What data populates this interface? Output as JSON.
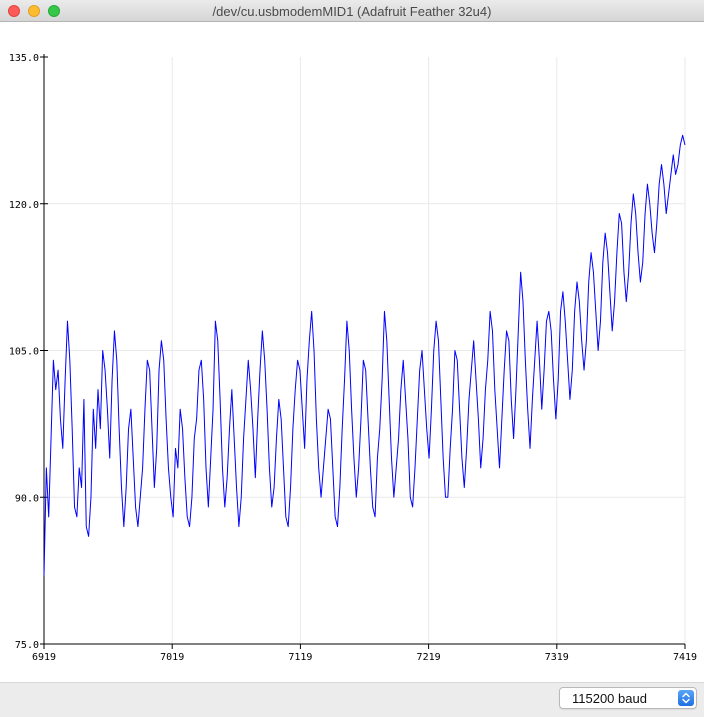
{
  "window": {
    "title": "/dev/cu.usbmodemMID1 (Adafruit Feather 32u4)"
  },
  "baud_select": {
    "value": "115200 baud"
  },
  "chart_data": {
    "type": "line",
    "title": "",
    "xlabel": "",
    "ylabel": "",
    "xlim": [
      6919,
      7419
    ],
    "ylim": [
      75.0,
      135.0
    ],
    "x_ticks": [
      "6919",
      "7019",
      "7119",
      "7219",
      "7319",
      "7419"
    ],
    "y_ticks": [
      "135.0",
      "120.0",
      "105.0",
      "90.0",
      "75.0"
    ],
    "grid": true,
    "series_color": "#0000ff",
    "series": [
      {
        "values": [
          82,
          93,
          88,
          96,
          104,
          101,
          103,
          98,
          95,
          102,
          108,
          104,
          97,
          89,
          88,
          93,
          91,
          100,
          87,
          86,
          90,
          99,
          95,
          101,
          97,
          105,
          103,
          99,
          94,
          102,
          107,
          104,
          97,
          91,
          87,
          91,
          97,
          99,
          94,
          89,
          87,
          90,
          93,
          99,
          104,
          103,
          97,
          91,
          95,
          103,
          106,
          104,
          98,
          93,
          90,
          88,
          95,
          93,
          99,
          97,
          92,
          88,
          87,
          90,
          96,
          98,
          103,
          104,
          100,
          93,
          89,
          94,
          99,
          108,
          106,
          100,
          93,
          89,
          92,
          97,
          101,
          96,
          91,
          87,
          90,
          96,
          100,
          104,
          101,
          97,
          92,
          98,
          103,
          107,
          104,
          99,
          93,
          89,
          91,
          96,
          100,
          98,
          93,
          88,
          87,
          91,
          97,
          101,
          104,
          103,
          99,
          95,
          102,
          106,
          109,
          105,
          98,
          93,
          90,
          93,
          96,
          99,
          98,
          93,
          88,
          87,
          91,
          97,
          102,
          108,
          105,
          99,
          94,
          90,
          93,
          98,
          104,
          103,
          98,
          93,
          89,
          88,
          94,
          97,
          102,
          109,
          106,
          100,
          94,
          90,
          93,
          96,
          101,
          104,
          100,
          96,
          90,
          89,
          93,
          98,
          103,
          105,
          101,
          97,
          94,
          99,
          105,
          108,
          106,
          100,
          94,
          90,
          90,
          95,
          99,
          105,
          104,
          99,
          94,
          91,
          95,
          100,
          103,
          106,
          102,
          98,
          93,
          96,
          101,
          104,
          109,
          107,
          101,
          97,
          93,
          98,
          103,
          107,
          106,
          100,
          96,
          101,
          107,
          113,
          110,
          104,
          99,
          95,
          100,
          104,
          108,
          104,
          99,
          103,
          108,
          109,
          107,
          102,
          98,
          102,
          109,
          111,
          108,
          104,
          100,
          103,
          109,
          112,
          110,
          106,
          103,
          106,
          112,
          115,
          113,
          109,
          105,
          108,
          114,
          117,
          115,
          111,
          107,
          110,
          115,
          119,
          118,
          113,
          110,
          113,
          118,
          121,
          119,
          115,
          112,
          114,
          119,
          122,
          120,
          117,
          115,
          118,
          122,
          124,
          122,
          119,
          121,
          123,
          125,
          123,
          124,
          126,
          127,
          126
        ]
      }
    ]
  }
}
